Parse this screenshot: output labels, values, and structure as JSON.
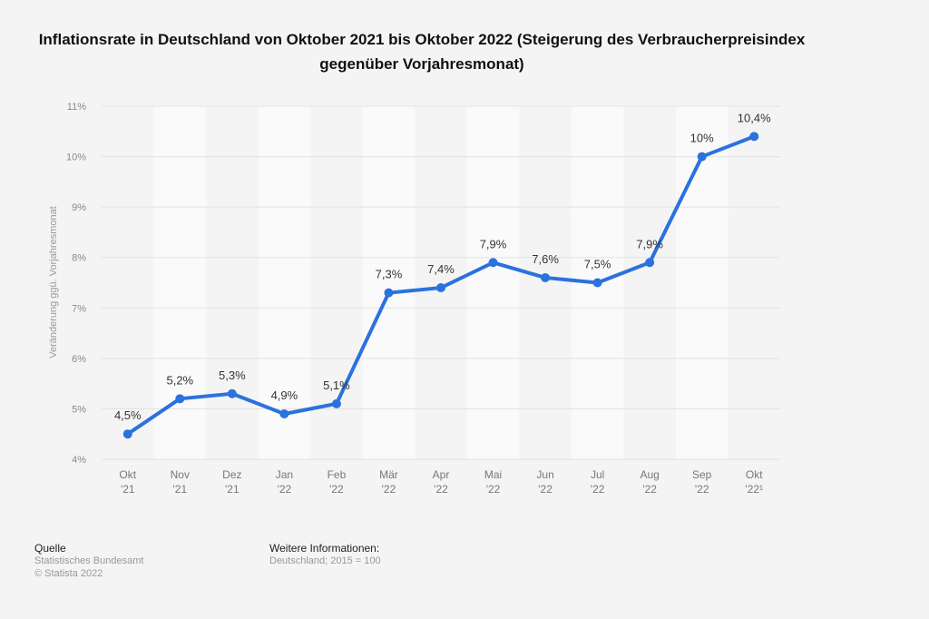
{
  "chart_data": {
    "type": "line",
    "title": "Inflationsrate in Deutschland von Oktober 2021 bis Oktober 2022 (Steigerung des Verbraucherpreisindex gegenüber Vorjahresmonat)",
    "ylabel": "Veränderung ggü. Vorjahresmonat",
    "xlabel": "",
    "categories": [
      [
        "Okt",
        "'21"
      ],
      [
        "Nov",
        "'21"
      ],
      [
        "Dez",
        "'21"
      ],
      [
        "Jan",
        "'22"
      ],
      [
        "Feb",
        "'22"
      ],
      [
        "Mär",
        "'22"
      ],
      [
        "Apr",
        "'22"
      ],
      [
        "Mai",
        "'22"
      ],
      [
        "Jun",
        "'22"
      ],
      [
        "Jul",
        "'22"
      ],
      [
        "Aug",
        "'22"
      ],
      [
        "Sep",
        "'22"
      ],
      [
        "Okt",
        "'22¹"
      ]
    ],
    "values": [
      4.5,
      5.2,
      5.3,
      4.9,
      5.1,
      7.3,
      7.4,
      7.9,
      7.6,
      7.5,
      7.9,
      10,
      10.4
    ],
    "data_labels": [
      "4,5%",
      "5,2%",
      "5,3%",
      "4,9%",
      "5,1%",
      "7,3%",
      "7,4%",
      "7,9%",
      "7,6%",
      "7,5%",
      "7,9%",
      "10%",
      "10,4%"
    ],
    "ylim": [
      4,
      11
    ],
    "yticks": [
      "4%",
      "5%",
      "6%",
      "7%",
      "8%",
      "9%",
      "10%",
      "11%"
    ],
    "grid": true,
    "line_color": "#2a72de"
  },
  "footer": {
    "source_heading": "Quelle",
    "source": "Statistisches Bundesamt",
    "copyright": "© Statista 2022",
    "info_heading": "Weitere Informationen:",
    "info": "Deutschland; 2015 = 100"
  }
}
